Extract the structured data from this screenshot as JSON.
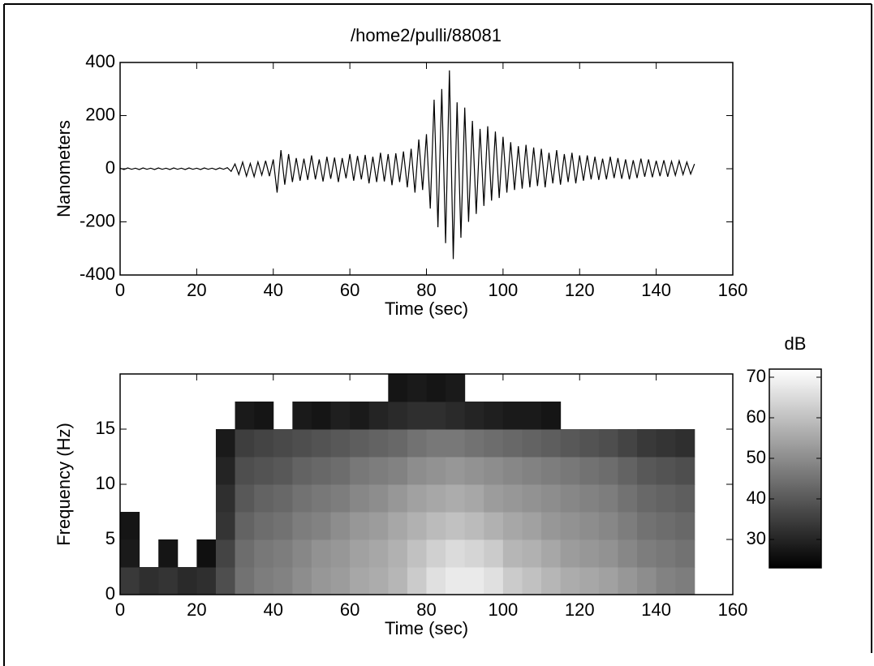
{
  "chart_data": [
    {
      "type": "line",
      "title": "/home2/pulli/88081",
      "xlabel": "Time (sec)",
      "ylabel": "Nanometers",
      "color": "#000000",
      "xlim": [
        0,
        160
      ],
      "xticks": [
        0,
        20,
        40,
        60,
        80,
        100,
        120,
        140,
        160
      ],
      "ylim": [
        -400,
        400
      ],
      "yticks": [
        -400,
        -200,
        0,
        200,
        400
      ],
      "x": [
        0,
        1,
        2,
        3,
        4,
        5,
        6,
        7,
        8,
        9,
        10,
        11,
        12,
        13,
        14,
        15,
        16,
        17,
        18,
        19,
        20,
        21,
        22,
        23,
        24,
        25,
        26,
        27,
        28,
        29,
        30,
        31,
        32,
        33,
        34,
        35,
        36,
        37,
        38,
        39,
        40,
        41,
        42,
        43,
        44,
        45,
        46,
        47,
        48,
        49,
        50,
        51,
        52,
        53,
        54,
        55,
        56,
        57,
        58,
        59,
        60,
        61,
        62,
        63,
        64,
        65,
        66,
        67,
        68,
        69,
        70,
        71,
        72,
        73,
        74,
        75,
        76,
        77,
        78,
        79,
        80,
        81,
        82,
        83,
        84,
        85,
        86,
        87,
        88,
        89,
        90,
        91,
        92,
        93,
        94,
        95,
        96,
        97,
        98,
        99,
        100,
        101,
        102,
        103,
        104,
        105,
        106,
        107,
        108,
        109,
        110,
        111,
        112,
        113,
        114,
        115,
        116,
        117,
        118,
        119,
        120,
        121,
        122,
        123,
        124,
        125,
        126,
        127,
        128,
        129,
        130,
        131,
        132,
        133,
        134,
        135,
        136,
        137,
        138,
        139,
        140,
        141,
        142,
        143,
        144,
        145,
        146,
        147,
        148,
        149,
        150
      ],
      "values": [
        2,
        -3,
        3,
        -2,
        2,
        -3,
        3,
        -2,
        2,
        -3,
        3,
        -2,
        2,
        -3,
        3,
        -2,
        2,
        -3,
        3,
        -2,
        2,
        -3,
        3,
        -2,
        2,
        -3,
        3,
        -2,
        4,
        -10,
        18,
        -22,
        25,
        -28,
        20,
        -30,
        26,
        -24,
        30,
        -28,
        35,
        -90,
        70,
        -60,
        55,
        -50,
        40,
        -45,
        38,
        -42,
        50,
        -40,
        35,
        -48,
        45,
        -38,
        42,
        -50,
        40,
        -36,
        55,
        -45,
        48,
        -40,
        52,
        -55,
        45,
        -50,
        60,
        -48,
        55,
        -62,
        58,
        -50,
        65,
        -70,
        75,
        -90,
        110,
        -80,
        130,
        -150,
        260,
        -220,
        300,
        -280,
        370,
        -340,
        250,
        -260,
        230,
        -200,
        180,
        -170,
        150,
        -140,
        160,
        -120,
        140,
        -110,
        120,
        -90,
        100,
        -80,
        85,
        -75,
        90,
        -70,
        80,
        -65,
        75,
        -70,
        60,
        -55,
        70,
        -60,
        55,
        -50,
        60,
        -55,
        50,
        -45,
        50,
        -40,
        45,
        -42,
        38,
        -40,
        45,
        -35,
        40,
        -38,
        35,
        -40,
        32,
        -35,
        38,
        -30,
        35,
        -32,
        30,
        -28,
        32,
        -30,
        28,
        -25,
        30,
        -22,
        25,
        -20,
        18
      ]
    },
    {
      "type": "heatmap",
      "xlabel": "Time (sec)",
      "ylabel": "Frequency (Hz)",
      "colormap": "gray",
      "xlim": [
        0,
        160
      ],
      "xticks": [
        0,
        20,
        40,
        60,
        80,
        100,
        120,
        140,
        160
      ],
      "ylim": [
        0,
        20
      ],
      "yticks": [
        0,
        5,
        10,
        15
      ],
      "x_bins": [
        0,
        5,
        10,
        15,
        20,
        25,
        30,
        35,
        40,
        45,
        50,
        55,
        60,
        65,
        70,
        75,
        80,
        85,
        90,
        95,
        100,
        105,
        110,
        115,
        120,
        125,
        130,
        135,
        140,
        145,
        150
      ],
      "y_bins": [
        0,
        2.5,
        5,
        7.5,
        10,
        12.5,
        15,
        17.5,
        20
      ],
      "z": [
        [
          34,
          32,
          33,
          31,
          32,
          38,
          45,
          47,
          48,
          50,
          52,
          53,
          55,
          56,
          58,
          62,
          66,
          68,
          68,
          66,
          62,
          60,
          58,
          56,
          55,
          54,
          52,
          50,
          48,
          47
        ],
        [
          28,
          null,
          27,
          null,
          26,
          36,
          44,
          46,
          47,
          49,
          51,
          52,
          54,
          55,
          57,
          60,
          63,
          65,
          64,
          62,
          58,
          57,
          55,
          53,
          52,
          51,
          49,
          47,
          46,
          45
        ],
        [
          27,
          null,
          null,
          null,
          null,
          33,
          42,
          44,
          45,
          47,
          48,
          50,
          52,
          53,
          55,
          57,
          59,
          60,
          59,
          57,
          55,
          54,
          52,
          51,
          50,
          49,
          47,
          45,
          44,
          43
        ],
        [
          null,
          null,
          null,
          null,
          null,
          32,
          40,
          42,
          43,
          45,
          46,
          47,
          49,
          50,
          52,
          54,
          55,
          56,
          55,
          53,
          52,
          51,
          50,
          49,
          48,
          47,
          45,
          43,
          42,
          41
        ],
        [
          null,
          null,
          null,
          null,
          null,
          30,
          38,
          39,
          40,
          42,
          43,
          44,
          46,
          47,
          48,
          50,
          51,
          52,
          51,
          50,
          49,
          48,
          47,
          46,
          45,
          44,
          42,
          40,
          39,
          38
        ],
        [
          null,
          null,
          null,
          null,
          null,
          28,
          35,
          36,
          37,
          38,
          39,
          40,
          41,
          42,
          43,
          45,
          46,
          46,
          45,
          44,
          43,
          42,
          41,
          40,
          39,
          38,
          36,
          34,
          33,
          32
        ],
        [
          null,
          null,
          null,
          null,
          null,
          null,
          28,
          27,
          null,
          28,
          27,
          29,
          28,
          30,
          31,
          32,
          32,
          31,
          30,
          29,
          28,
          28,
          27,
          null,
          null,
          null,
          null,
          null,
          null,
          null
        ],
        [
          null,
          null,
          null,
          null,
          null,
          null,
          null,
          null,
          null,
          null,
          null,
          null,
          null,
          null,
          27,
          28,
          27,
          28,
          null,
          null,
          null,
          null,
          null,
          null,
          null,
          null,
          null,
          null,
          null,
          null
        ]
      ],
      "colorbar": {
        "label": "dB",
        "lim": [
          23,
          72
        ],
        "ticks": [
          30,
          40,
          50,
          60,
          70
        ]
      }
    }
  ]
}
